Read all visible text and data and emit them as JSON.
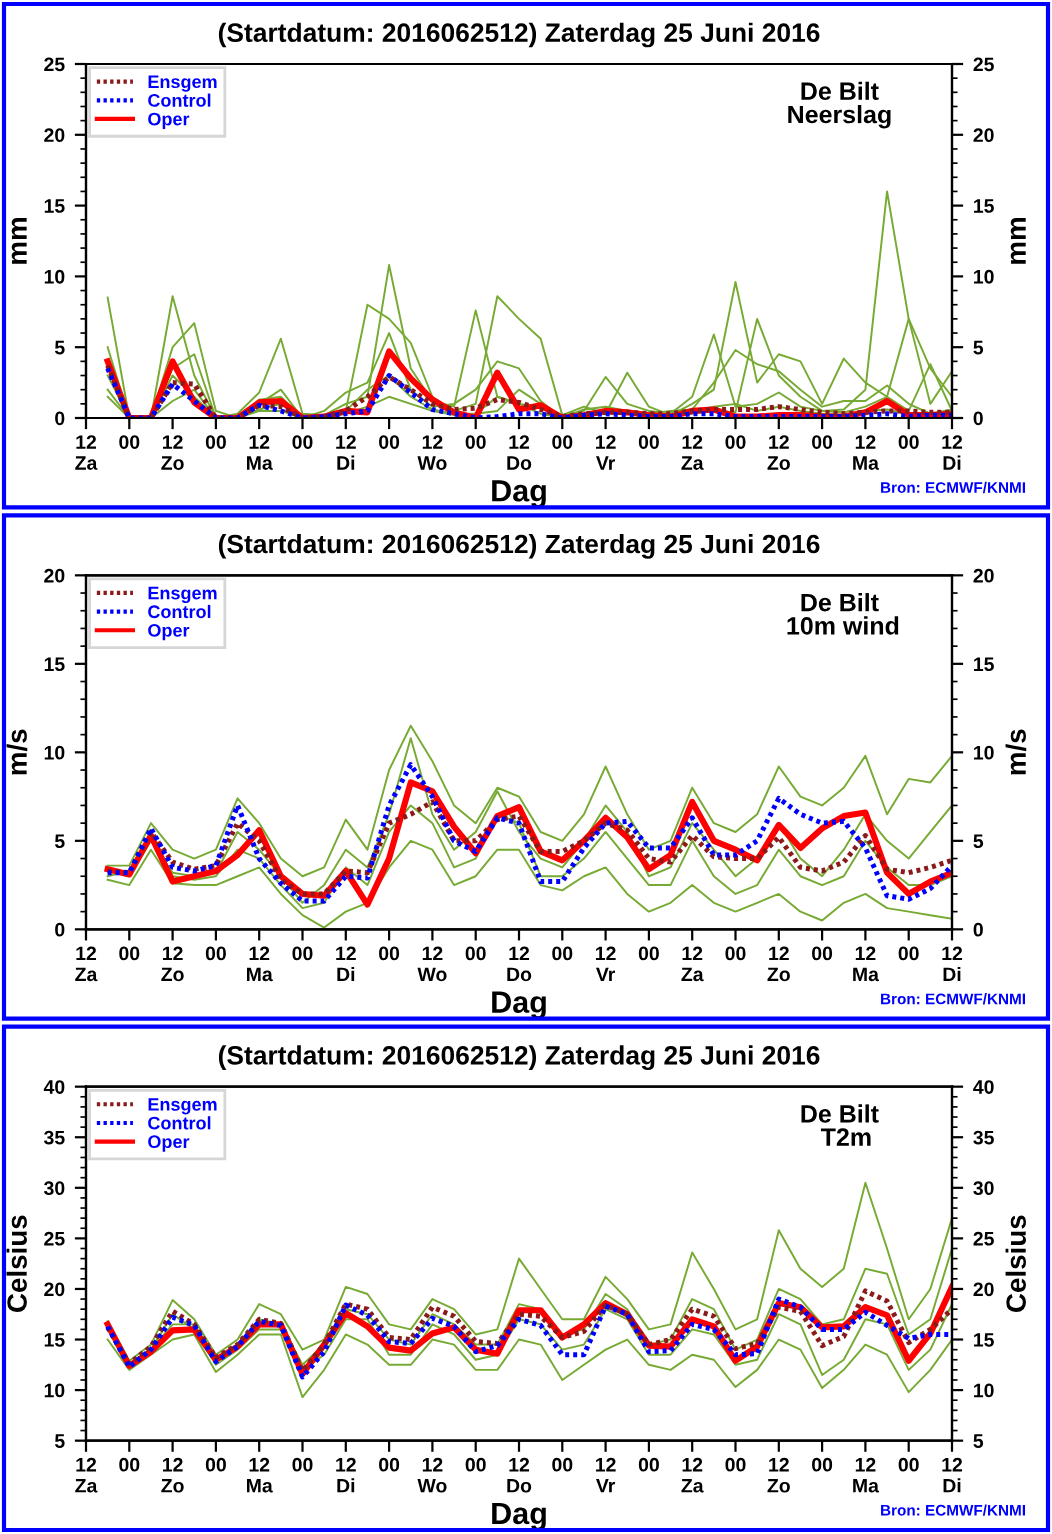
{
  "chart_data": [
    {
      "type": "line",
      "title": "(Startdatum: 2016062512) Zaterdag 25 Juni 2016",
      "xlabel": "Dag",
      "ylabel": "mm",
      "y2label": "mm",
      "annotations": [
        "De Bilt\nNeerslag",
        "Bron: ECMWF/KNMI"
      ],
      "categories": [
        "12\nZa",
        null,
        "00",
        null,
        "12\nZo",
        null,
        "00",
        null,
        "12\nMa",
        null,
        "00",
        null,
        "12\nDi",
        null,
        "00",
        null,
        "12\nWo",
        null,
        "00",
        null,
        "12\nDo",
        null,
        "00",
        null,
        "12\nVr",
        null,
        "00",
        null,
        "12\nZa",
        null,
        "00",
        null,
        "12\nZo",
        null,
        "00",
        null,
        "12\nMa",
        null,
        "00",
        null,
        "12\nDi"
      ],
      "ylim": [
        0,
        25
      ],
      "yticks": [
        0,
        5,
        10,
        15,
        20,
        25
      ],
      "y2lim": [
        0,
        25
      ],
      "y2ticks": [
        0,
        5,
        10,
        15,
        20,
        25
      ],
      "grid": false,
      "legend": "top left",
      "marker": "none",
      "series": [
        {
          "color": "#77aa33",
          "values": [
            null,
            8.5,
            0,
            0,
            8.6,
            3.0,
            0,
            0.3,
            1.8,
            5.6,
            0.3,
            0.2,
            1.0,
            1.5,
            10.8,
            3.5,
            1.2,
            0.8,
            7.6,
            1.5,
            1.0,
            0.8,
            0.2,
            0.5,
            2.9,
            1.0,
            0.5,
            0.3,
            1.5,
            5.9,
            0.8,
            1.0,
            1.8,
            0.8,
            0.5,
            0.6,
            2.0,
            16.0,
            7.0,
            1.0,
            3.3
          ]
        },
        {
          "color": "#77aa33",
          "values": [
            null,
            5.0,
            0,
            0,
            5.0,
            6.7,
            0.5,
            0,
            1.0,
            2.0,
            0,
            0.1,
            0.5,
            8.0,
            7.0,
            5.3,
            1.5,
            0.5,
            1.0,
            8.6,
            7.0,
            5.6,
            0.2,
            0.8,
            0.3,
            3.2,
            0.8,
            0.2,
            1.0,
            2.0,
            9.6,
            2.5,
            4.5,
            4.0,
            1.0,
            4.2,
            2.5,
            1.5,
            7.0,
            3.5,
            1.5
          ]
        },
        {
          "color": "#77aa33",
          "values": [
            null,
            1.5,
            0,
            0,
            1.2,
            2.0,
            0,
            0,
            0.6,
            1.0,
            0,
            0,
            0.3,
            0.8,
            1.5,
            1.0,
            0.5,
            0.2,
            0.3,
            0.5,
            2.0,
            1.0,
            0,
            0.2,
            0.3,
            0.5,
            0.2,
            0.1,
            0.3,
            0.5,
            0.4,
            7.0,
            3.0,
            1.5,
            0.5,
            0.4,
            0.8,
            1.5,
            0.5,
            3.8,
            0.5
          ]
        },
        {
          "color": "#77aa33",
          "values": [
            null,
            3.0,
            0,
            0,
            3.5,
            4.5,
            0,
            0,
            1.3,
            1.5,
            0,
            0.5,
            1.8,
            2.5,
            6.0,
            2.0,
            0.8,
            1.0,
            2.0,
            4.0,
            3.5,
            1.2,
            0,
            0.6,
            0.8,
            0.5,
            0.3,
            0.5,
            0.6,
            2.5,
            4.8,
            3.8,
            3.3,
            2.0,
            0.8,
            1.2,
            1.2,
            2.3,
            1.0,
            0.3,
            0.6
          ]
        },
        {
          "color": "#77aa33",
          "values": [
            null,
            2.0,
            0,
            0,
            3.0,
            1.5,
            0,
            0,
            0.5,
            0.5,
            0,
            0.2,
            0.5,
            2.0,
            3.0,
            1.5,
            0.6,
            0.3,
            0.3,
            1.5,
            1.0,
            0.3,
            0,
            0.3,
            0.6,
            0.5,
            0.3,
            0.2,
            0.5,
            0.8,
            1.0,
            0.5,
            0.8,
            0.5,
            0.3,
            0.2,
            0.5,
            0.6,
            0.3,
            0.2,
            0.4
          ]
        },
        {
          "name": "Ensgem",
          "color": "#8b1a1a",
          "line_style": "dotted",
          "values": [
            null,
            3.7,
            0,
            0,
            2.5,
            2.4,
            0,
            0,
            0.9,
            0.8,
            0,
            0.1,
            0.5,
            1.5,
            2.9,
            2.0,
            1.0,
            0.6,
            0.7,
            1.3,
            1.1,
            0.6,
            0.1,
            0.3,
            0.4,
            0.4,
            0.3,
            0.3,
            0.5,
            0.6,
            0.6,
            0.6,
            0.8,
            0.6,
            0.4,
            0.3,
            0.4,
            0.5,
            0.5,
            0.4,
            0.4
          ]
        },
        {
          "name": "Control",
          "color": "#0000ff",
          "line_style": "dotted",
          "values": [
            null,
            3.5,
            0,
            0,
            2.4,
            1.2,
            0,
            0,
            0.9,
            0.5,
            0,
            0.1,
            0.3,
            0.5,
            3.0,
            1.8,
            0.6,
            0.3,
            0,
            0.1,
            0.3,
            0.3,
            0,
            0.2,
            0.3,
            0.2,
            0.1,
            0.1,
            0.3,
            0.3,
            0.1,
            0.1,
            0.1,
            0.1,
            0.1,
            0.1,
            0.2,
            0.3,
            0.1,
            0.2,
            0.2
          ]
        },
        {
          "name": "Oper",
          "color": "#ff0000",
          "line_style": "solid",
          "values": [
            null,
            4.0,
            0,
            0,
            4.0,
            1.1,
            0,
            0,
            1.1,
            1.2,
            0,
            0.1,
            0.5,
            0.4,
            4.7,
            2.8,
            1.3,
            0.4,
            0,
            3.2,
            0.6,
            0.9,
            0,
            0.2,
            0.5,
            0.4,
            0.2,
            0.1,
            0.5,
            0.6,
            0.1,
            0.1,
            0.2,
            0.2,
            0.1,
            0.1,
            0.4,
            1.2,
            0.2,
            0.2,
            0.3
          ]
        }
      ]
    },
    {
      "type": "line",
      "title": "(Startdatum: 2016062512) Zaterdag 25 Juni 2016",
      "xlabel": "Dag",
      "ylabel": "m/s",
      "y2label": "m/s",
      "annotations": [
        "De Bilt\n 10m wind",
        "Bron: ECMWF/KNMI"
      ],
      "categories": [
        "12\nZa",
        null,
        "00",
        null,
        "12\nZo",
        null,
        "00",
        null,
        "12\nMa",
        null,
        "00",
        null,
        "12\nDi",
        null,
        "00",
        null,
        "12\nWo",
        null,
        "00",
        null,
        "12\nDo",
        null,
        "00",
        null,
        "12\nVr",
        null,
        "00",
        null,
        "12\nZa",
        null,
        "00",
        null,
        "12\nZo",
        null,
        "00",
        null,
        "12\nMa",
        null,
        "00",
        null,
        "12\nDi"
      ],
      "ylim": [
        0,
        20
      ],
      "yticks": [
        0,
        5,
        10,
        15,
        20
      ],
      "y2lim": [
        0,
        20
      ],
      "y2ticks": [
        0,
        5,
        10,
        15,
        20
      ],
      "grid": false,
      "legend": "top left",
      "marker": "none",
      "series": [
        {
          "color": "#77aa33",
          "values": [
            null,
            3.6,
            3.6,
            6.0,
            4.5,
            4.0,
            4.5,
            7.4,
            6.0,
            4.0,
            3.0,
            3.5,
            6.2,
            4.5,
            9.0,
            11.5,
            9.5,
            7.0,
            6.0,
            8.0,
            7.5,
            5.5,
            5.0,
            6.5,
            9.2,
            6.5,
            4.5,
            5.0,
            8.0,
            6.0,
            5.5,
            6.5,
            9.2,
            7.5,
            7.0,
            8.0,
            9.8,
            6.5,
            8.5,
            8.3,
            9.8
          ]
        },
        {
          "color": "#77aa33",
          "values": [
            null,
            2.8,
            2.5,
            4.5,
            2.6,
            2.5,
            2.5,
            3.0,
            3.5,
            2.0,
            0.8,
            0.1,
            1.0,
            1.5,
            3.5,
            5.0,
            4.5,
            2.5,
            3.0,
            4.5,
            4.5,
            2.5,
            2.2,
            3.0,
            3.5,
            2.0,
            1.0,
            1.5,
            2.5,
            1.5,
            1.0,
            1.5,
            2.0,
            1.0,
            0.5,
            1.5,
            2.0,
            1.2,
            1.0,
            0.8,
            0.6
          ]
        },
        {
          "color": "#77aa33",
          "values": [
            null,
            3.3,
            3.0,
            5.0,
            3.2,
            3.0,
            3.2,
            5.5,
            4.5,
            3.0,
            1.5,
            2.5,
            4.5,
            3.5,
            6.5,
            10.8,
            6.5,
            4.5,
            5.5,
            7.8,
            5.5,
            4.0,
            3.5,
            5.0,
            7.0,
            5.5,
            3.0,
            3.5,
            6.0,
            4.5,
            3.0,
            4.0,
            6.0,
            4.0,
            3.0,
            4.5,
            6.5,
            5.0,
            4.0,
            5.5,
            7.0
          ]
        },
        {
          "color": "#77aa33",
          "values": [
            null,
            3.0,
            3.3,
            5.5,
            3.0,
            2.8,
            3.0,
            4.5,
            4.0,
            2.5,
            1.2,
            1.5,
            3.5,
            2.5,
            5.5,
            7.0,
            6.0,
            3.5,
            4.0,
            6.5,
            6.0,
            3.0,
            3.0,
            4.0,
            5.5,
            4.0,
            2.5,
            2.5,
            5.0,
            3.0,
            2.0,
            2.5,
            4.5,
            3.0,
            2.5,
            3.0,
            5.0,
            3.5,
            2.5,
            2.5,
            3.0
          ]
        },
        {
          "name": "Ensgem",
          "color": "#8b1a1a",
          "line_style": "dotted",
          "values": [
            null,
            3.3,
            3.2,
            5.5,
            3.8,
            3.4,
            3.6,
            6.0,
            5.0,
            2.8,
            2.0,
            2.0,
            3.3,
            3.2,
            6.0,
            6.5,
            7.2,
            5.0,
            5.0,
            6.2,
            6.4,
            4.4,
            4.4,
            5.0,
            6.0,
            5.6,
            4.0,
            3.8,
            5.3,
            4.1,
            4.0,
            4.0,
            5.2,
            3.5,
            3.3,
            3.8,
            5.3,
            3.4,
            3.2,
            3.5,
            3.9
          ]
        },
        {
          "name": "Control",
          "color": "#0000ff",
          "line_style": "dotted",
          "values": [
            null,
            3.2,
            3.2,
            5.7,
            3.5,
            3.3,
            3.6,
            7.0,
            4.0,
            2.6,
            1.6,
            1.6,
            3.0,
            2.9,
            7.0,
            9.3,
            7.5,
            5.0,
            4.4,
            6.3,
            6.0,
            2.7,
            2.7,
            4.6,
            6.0,
            6.1,
            4.6,
            4.6,
            6.3,
            4.2,
            4.2,
            5.0,
            7.4,
            6.5,
            6.0,
            6.1,
            4.6,
            1.9,
            1.7,
            2.3,
            3.6
          ]
        },
        {
          "name": "Oper",
          "color": "#ff0000",
          "line_style": "solid",
          "values": [
            null,
            3.4,
            3.1,
            5.3,
            2.7,
            3.0,
            3.3,
            4.2,
            5.6,
            3.0,
            2.0,
            1.9,
            3.3,
            1.4,
            4.0,
            8.3,
            7.8,
            5.8,
            4.3,
            6.4,
            6.9,
            4.4,
            3.9,
            5.0,
            6.3,
            5.2,
            3.4,
            4.2,
            7.2,
            5.0,
            4.5,
            3.9,
            5.9,
            4.6,
            5.7,
            6.4,
            6.6,
            3.2,
            2.0,
            2.7,
            3.2
          ]
        }
      ]
    },
    {
      "type": "line",
      "title": "(Startdatum: 2016062512) Zaterdag 25 Juni 2016",
      "xlabel": "Dag",
      "ylabel": "Celsius",
      "y2label": "Celsius",
      "annotations": [
        "De Bilt\n  T2m",
        "Bron: ECMWF/KNMI"
      ],
      "categories": [
        "12\nZa",
        null,
        "00",
        null,
        "12\nZo",
        null,
        "00",
        null,
        "12\nMa",
        null,
        "00",
        null,
        "12\nDi",
        null,
        "00",
        null,
        "12\nWo",
        null,
        "00",
        null,
        "12\nDo",
        null,
        "00",
        null,
        "12\nVr",
        null,
        "00",
        null,
        "12\nZa",
        null,
        "00",
        null,
        "12\nZo",
        null,
        "00",
        null,
        "12\nMa",
        null,
        "00",
        null,
        "12\nDi"
      ],
      "ylim": [
        5,
        40
      ],
      "yticks": [
        5,
        10,
        15,
        20,
        25,
        30,
        35,
        40
      ],
      "y2lim": [
        5,
        40
      ],
      "y2ticks": [
        5,
        10,
        15,
        20,
        25,
        30,
        35,
        40
      ],
      "grid": false,
      "legend": "top left",
      "marker": "none",
      "series": [
        {
          "color": "#77aa33",
          "values": [
            null,
            16.8,
            12.9,
            14.5,
            18.9,
            17.0,
            13.5,
            15.0,
            18.5,
            17.5,
            14.0,
            15.0,
            20.2,
            19.5,
            16.5,
            16.0,
            19.0,
            18.0,
            15.5,
            16.0,
            23.0,
            20.0,
            17.0,
            17.0,
            21.2,
            19.0,
            16.0,
            16.5,
            23.6,
            20.0,
            16.0,
            17.0,
            25.8,
            22.0,
            20.2,
            22.0,
            30.5,
            24.0,
            17.0,
            20.0,
            27.0
          ]
        },
        {
          "color": "#77aa33",
          "values": [
            null,
            15.0,
            12.0,
            13.5,
            15.0,
            15.5,
            11.8,
            13.5,
            15.5,
            15.5,
            9.3,
            12.0,
            15.5,
            14.5,
            12.5,
            12.5,
            15.0,
            14.5,
            12.0,
            12.0,
            15.0,
            14.5,
            11.0,
            12.5,
            14.0,
            15.0,
            12.5,
            12.0,
            13.5,
            13.0,
            10.3,
            12.0,
            15.0,
            14.0,
            10.2,
            12.0,
            14.5,
            13.5,
            9.8,
            12.0,
            15.0
          ]
        },
        {
          "color": "#77aa33",
          "values": [
            null,
            16.0,
            12.5,
            14.0,
            16.5,
            16.5,
            13.0,
            14.5,
            17.0,
            16.5,
            12.5,
            14.5,
            18.0,
            17.5,
            15.0,
            14.5,
            17.5,
            16.5,
            14.5,
            14.5,
            18.5,
            18.0,
            15.5,
            16.0,
            19.5,
            18.0,
            14.5,
            15.0,
            19.0,
            18.0,
            14.0,
            15.0,
            20.0,
            19.0,
            16.5,
            17.0,
            22.0,
            21.5,
            15.5,
            17.0,
            24.0
          ]
        },
        {
          "color": "#77aa33",
          "values": [
            null,
            16.4,
            12.6,
            14.0,
            17.5,
            16.0,
            12.5,
            14.0,
            16.0,
            16.0,
            12.0,
            13.5,
            17.0,
            17.0,
            13.5,
            13.5,
            16.5,
            15.5,
            13.0,
            13.5,
            17.0,
            16.5,
            14.0,
            14.5,
            18.0,
            17.0,
            13.5,
            13.5,
            16.0,
            15.5,
            12.5,
            13.0,
            17.5,
            16.5,
            11.5,
            13.0,
            17.0,
            16.5,
            12.0,
            14.0,
            18.5
          ]
        },
        {
          "name": "Ensgem",
          "color": "#8b1a1a",
          "line_style": "dotted",
          "values": [
            null,
            16.2,
            12.6,
            14.3,
            17.8,
            16.5,
            13.2,
            14.5,
            17.0,
            16.6,
            11.9,
            14.5,
            18.5,
            18.0,
            15.2,
            15.0,
            18.2,
            17.3,
            14.8,
            14.6,
            17.5,
            17.3,
            15.2,
            15.8,
            18.4,
            17.5,
            14.5,
            15.0,
            18.0,
            17.3,
            14.1,
            14.6,
            18.2,
            17.8,
            14.4,
            15.3,
            19.8,
            18.8,
            14.7,
            16.0,
            18.0
          ]
        },
        {
          "name": "Control",
          "color": "#0000ff",
          "line_style": "dotted",
          "values": [
            null,
            16.3,
            12.3,
            14.0,
            17.2,
            16.4,
            12.8,
            14.3,
            16.8,
            16.4,
            11.3,
            13.8,
            18.4,
            17.4,
            14.8,
            14.6,
            17.1,
            16.3,
            13.8,
            14.4,
            17.0,
            16.4,
            13.5,
            13.5,
            18.3,
            17.5,
            13.8,
            13.9,
            16.5,
            16.0,
            13.5,
            13.6,
            19.0,
            18.2,
            16.0,
            16.0,
            17.7,
            16.4,
            15.1,
            15.5,
            15.5
          ]
        },
        {
          "name": "Oper",
          "color": "#ff0000",
          "line_style": "solid",
          "values": [
            null,
            16.5,
            12.4,
            13.8,
            15.9,
            16.0,
            13.0,
            14.3,
            16.5,
            16.5,
            11.6,
            14.5,
            17.6,
            16.3,
            14.2,
            13.9,
            15.6,
            16.2,
            14.0,
            13.6,
            17.9,
            17.9,
            15.2,
            16.5,
            18.6,
            17.5,
            14.4,
            14.3,
            17.0,
            16.3,
            12.9,
            14.3,
            18.6,
            18.2,
            16.2,
            16.3,
            18.2,
            17.4,
            12.9,
            15.6,
            20.2
          ]
        }
      ]
    }
  ]
}
